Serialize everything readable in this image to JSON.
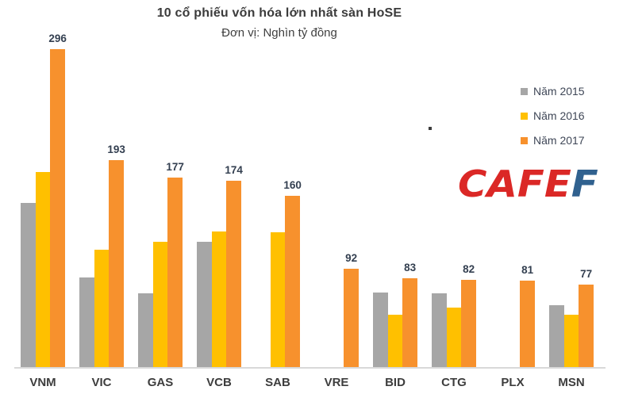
{
  "header": {
    "title": "10 cổ phiếu vốn hóa lớn nhất sàn HoSE",
    "subtitle": "Đơn vị: Nghìn tỷ đồng"
  },
  "logo": {
    "red_text": "CAFE",
    "blue_text": "F",
    "red_color": "#db2826",
    "blue_color": "#30618f"
  },
  "colors": {
    "series_2015": "#a6a6a6",
    "series_2016": "#ffc000",
    "series_2017": "#f7912d",
    "axis_line": "#d9d9d9",
    "data_label": "#333f50",
    "category_label": "#3d3d3d",
    "legend_text": "#3f4757",
    "title_text": "#3b3b3b"
  },
  "chart_data": {
    "type": "bar",
    "title": "10 cổ phiếu vốn hóa lớn nhất sàn HoSE",
    "subtitle": "Đơn vị: Nghìn tỷ đồng",
    "xlabel": "",
    "ylabel": "Nghìn tỷ đồng",
    "ylim": [
      0,
      310
    ],
    "grid": false,
    "legend_position": "right",
    "categories": [
      "VNM",
      "VIC",
      "GAS",
      "VCB",
      "SAB",
      "VRE",
      "BID",
      "CTG",
      "PLX",
      "MSN"
    ],
    "series": [
      {
        "name": "Năm 2015",
        "key": "2015",
        "color": "#a6a6a6",
        "show_data_labels": false,
        "values": [
          153,
          84,
          69,
          117,
          null,
          null,
          70,
          69,
          null,
          58
        ]
      },
      {
        "name": "Năm 2016",
        "key": "2016",
        "color": "#ffc000",
        "show_data_labels": false,
        "values": [
          182,
          110,
          117,
          127,
          126,
          null,
          49,
          56,
          null,
          49
        ]
      },
      {
        "name": "Năm 2017",
        "key": "2017",
        "color": "#f7912d",
        "show_data_labels": true,
        "values": [
          296,
          193,
          177,
          174,
          160,
          92,
          83,
          82,
          81,
          77
        ]
      }
    ]
  }
}
